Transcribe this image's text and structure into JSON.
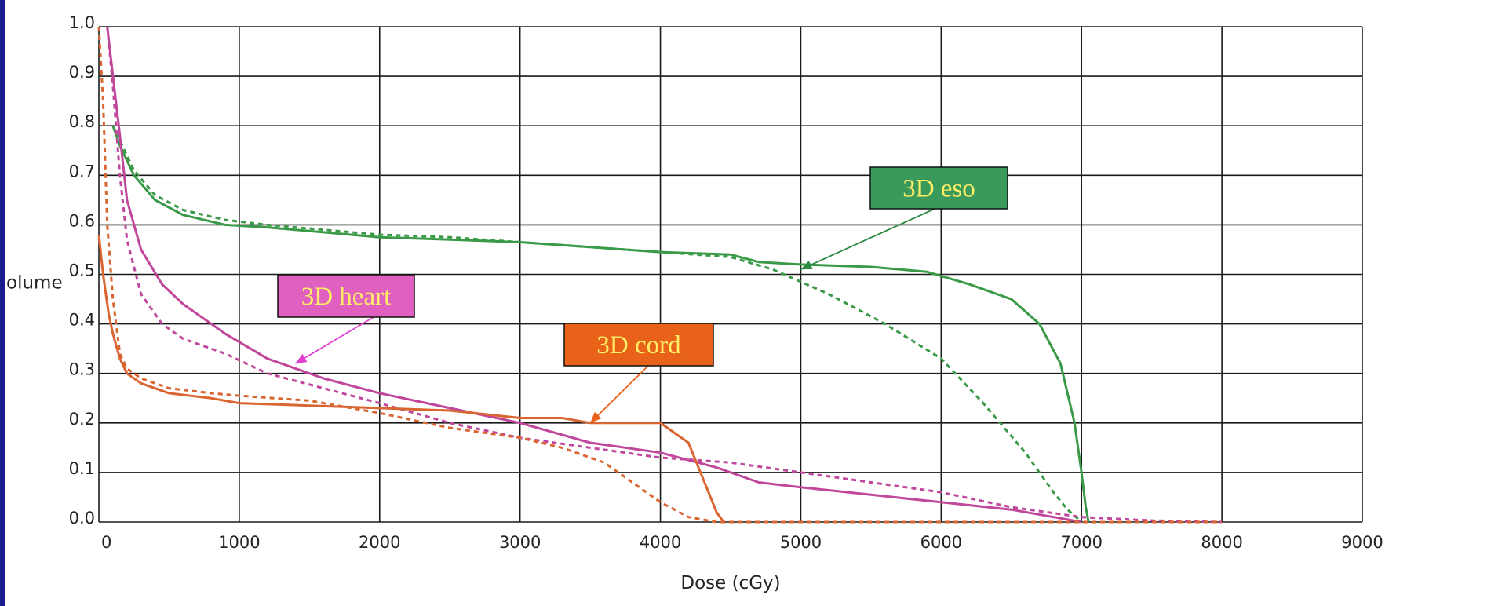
{
  "chart_data": {
    "type": "line",
    "title": "",
    "xlabel": "Dose (cGy)",
    "ylabel": "olume",
    "xlim": [
      0,
      9000
    ],
    "ylim": [
      0,
      1.0
    ],
    "grid": true,
    "x_ticks": [
      "0",
      "1000",
      "2000",
      "3000",
      "4000",
      "5000",
      "6000",
      "7000",
      "8000",
      "9000"
    ],
    "y_ticks": [
      "0.0",
      "0.1",
      "0.2",
      "0.3",
      "0.4",
      "0.5",
      "0.6",
      "0.7",
      "0.8",
      "0.9",
      "1.0"
    ],
    "series": [
      {
        "color": "#3a9a48",
        "dash": "solid",
        "x": [
          100,
          150,
          250,
          400,
          600,
          900,
          1200,
          1600,
          2000,
          2500,
          3000,
          3500,
          4000,
          4500,
          4700,
          5000,
          5500,
          5900,
          6200,
          6500,
          6700,
          6850,
          6950,
          7000,
          7030,
          7050
        ],
        "y": [
          0.8,
          0.76,
          0.7,
          0.65,
          0.62,
          0.6,
          0.595,
          0.585,
          0.575,
          0.57,
          0.565,
          0.555,
          0.545,
          0.54,
          0.525,
          0.52,
          0.515,
          0.505,
          0.48,
          0.45,
          0.4,
          0.32,
          0.2,
          0.1,
          0.03,
          0.0
        ]
      },
      {
        "color": "#3a9a48",
        "dash": "dashed",
        "x": [
          100,
          150,
          250,
          400,
          600,
          900,
          1200,
          1600,
          2000,
          2500,
          3000,
          3500,
          4000,
          4500,
          4800,
          5200,
          5600,
          6000,
          6300,
          6600,
          6800,
          6900,
          7000
        ],
        "y": [
          0.8,
          0.77,
          0.71,
          0.66,
          0.63,
          0.61,
          0.6,
          0.59,
          0.58,
          0.575,
          0.565,
          0.555,
          0.545,
          0.535,
          0.51,
          0.46,
          0.4,
          0.33,
          0.24,
          0.14,
          0.06,
          0.025,
          0.0
        ]
      },
      {
        "color": "#c0479c",
        "dash": "solid",
        "x": [
          60,
          100,
          150,
          200,
          300,
          450,
          600,
          900,
          1200,
          1600,
          2000,
          2500,
          3000,
          3500,
          4000,
          4400,
          4700,
          5000,
          5500,
          6000,
          6500,
          6900,
          7000
        ],
        "y": [
          1.0,
          0.9,
          0.78,
          0.65,
          0.55,
          0.48,
          0.44,
          0.38,
          0.33,
          0.29,
          0.26,
          0.23,
          0.2,
          0.16,
          0.14,
          0.11,
          0.08,
          0.07,
          0.055,
          0.04,
          0.025,
          0.005,
          0.0
        ]
      },
      {
        "color": "#c0479c",
        "dash": "dashed",
        "x": [
          60,
          100,
          150,
          200,
          300,
          450,
          600,
          900,
          1200,
          1600,
          2000,
          2500,
          3000,
          3500,
          4000,
          4500,
          5000,
          5500,
          6000,
          6500,
          7000,
          7500,
          8000
        ],
        "y": [
          1.0,
          0.88,
          0.7,
          0.57,
          0.46,
          0.4,
          0.37,
          0.34,
          0.3,
          0.27,
          0.24,
          0.2,
          0.17,
          0.15,
          0.13,
          0.12,
          0.1,
          0.08,
          0.06,
          0.03,
          0.01,
          0.003,
          0.0
        ]
      },
      {
        "color": "#d96530",
        "dash": "solid",
        "x": [
          0,
          30,
          70,
          100,
          150,
          200,
          300,
          500,
          800,
          1000,
          1500,
          2000,
          2500,
          3000,
          3300,
          3500,
          4000,
          4200,
          4300,
          4400,
          4450
        ],
        "y": [
          0.58,
          0.5,
          0.42,
          0.38,
          0.33,
          0.3,
          0.28,
          0.26,
          0.25,
          0.24,
          0.235,
          0.23,
          0.225,
          0.21,
          0.21,
          0.2,
          0.2,
          0.16,
          0.09,
          0.02,
          0.0
        ]
      },
      {
        "color": "#d96530",
        "dash": "dashed",
        "x": [
          0,
          30,
          60,
          100,
          150,
          200,
          300,
          500,
          800,
          1000,
          1500,
          2000,
          2500,
          3000,
          3300,
          3600,
          3800,
          4000,
          4200,
          4400,
          8000
        ],
        "y": [
          1.0,
          0.85,
          0.6,
          0.45,
          0.34,
          0.31,
          0.29,
          0.27,
          0.26,
          0.255,
          0.245,
          0.22,
          0.19,
          0.17,
          0.15,
          0.12,
          0.08,
          0.04,
          0.01,
          0.0,
          0.0
        ]
      }
    ],
    "annotations": [
      {
        "text": "3D eso",
        "bg": "#3a9a5c",
        "fg": "#ffee66",
        "arrow_color": "#2e8a44",
        "arrow_to": [
          5000,
          0.51
        ]
      },
      {
        "text": "3D heart",
        "bg": "#e060c0",
        "fg": "#ffee66",
        "arrow_color": "#e040d0",
        "arrow_to": [
          1400,
          0.32
        ]
      },
      {
        "text": "3D cord",
        "bg": "#e8621a",
        "fg": "#ffee66",
        "arrow_color": "#e8621a",
        "arrow_to": [
          3500,
          0.2
        ]
      }
    ]
  }
}
